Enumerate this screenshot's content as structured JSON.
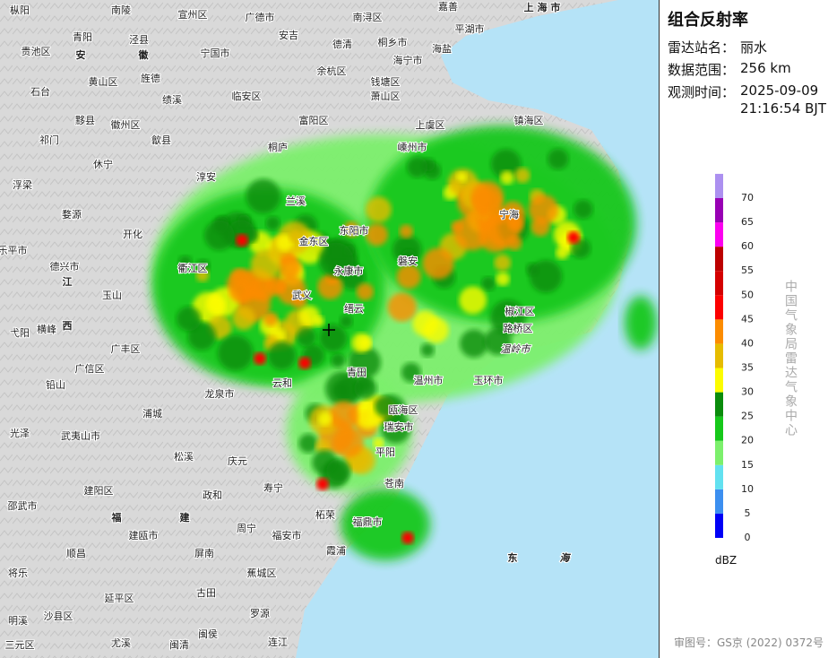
{
  "panel": {
    "title": "组合反射率",
    "station_label": "雷达站名：",
    "station": "丽水",
    "range_label": "数据范围：",
    "range": "256 km",
    "time_label": "观测时间：",
    "date": "2025-09-09",
    "time": "21:16:54 BJT",
    "agency": "中国气象局雷达气象中心",
    "unit": "dBZ",
    "approval": "审图号：GS京 (2022) 0372号"
  },
  "legend": {
    "levels": [
      {
        "value": 0,
        "color": "#0000f6"
      },
      {
        "value": 5,
        "color": "#3c8ff0"
      },
      {
        "value": 10,
        "color": "#62e1f0"
      },
      {
        "value": 15,
        "color": "#7cf06c"
      },
      {
        "value": 20,
        "color": "#16c81a"
      },
      {
        "value": 25,
        "color": "#0a8c0c"
      },
      {
        "value": 30,
        "color": "#fcfc00"
      },
      {
        "value": 35,
        "color": "#e6bc00"
      },
      {
        "value": 40,
        "color": "#fc8c00"
      },
      {
        "value": 45,
        "color": "#fc0000"
      },
      {
        "value": 50,
        "color": "#d40000"
      },
      {
        "value": 55,
        "color": "#bc0000"
      },
      {
        "value": 60,
        "color": "#fc00f0"
      },
      {
        "value": 65,
        "color": "#9800b4"
      },
      {
        "value": 70,
        "color": "#ac90f0"
      }
    ]
  },
  "map": {
    "region": "上 海 市",
    "places": [
      "枞阳",
      "南陵",
      "宣州区",
      "广德市",
      "安吉",
      "南浔区",
      "嘉善",
      "平湖市",
      "青阳",
      "泾县",
      "宁国市",
      "德清",
      "桐乡市",
      "海盐",
      "贵池区",
      "安",
      "徽",
      "余杭区",
      "海宁市",
      "石台",
      "黄山区",
      "旌德",
      "临安区",
      "钱塘区",
      "萧山区",
      "绩溪",
      "黟县",
      "徽州区",
      "歙县",
      "富阳区",
      "上虞区",
      "镇海区",
      "祁门",
      "休宁",
      "淳安",
      "桐庐",
      "嵊州市",
      "浮梁",
      "婺源",
      "兰溪",
      "开化",
      "金东区",
      "东阳市",
      "乐平市",
      "德兴市",
      "衢江区",
      "玉山",
      "武义",
      "江",
      "缙云",
      "永康市",
      "磐安",
      "横峰",
      "西",
      "弋阳",
      "广丰区",
      "广信区",
      "铅山",
      "龙泉市",
      "青田",
      "云和",
      "瓯海区",
      "瑞安市",
      "庆元",
      "平阳",
      "光泽",
      "武夷山市",
      "松溪",
      "浦城",
      "建阳区",
      "政和",
      "寿宁",
      "苍南",
      "邵武市",
      "福",
      "建",
      "建瓯市",
      "周宁",
      "福安市",
      "福鼎市",
      "柘荣",
      "顺昌",
      "屏南",
      "霞浦",
      "将乐",
      "蕉城区",
      "古田",
      "延平区",
      "明溪",
      "沙县区",
      "罗源",
      "闽清",
      "闽侯",
      "连江",
      "三元区",
      "尤溪",
      "东",
      "海",
      "温岭市",
      "玉环市",
      "路桥区",
      "椒江区",
      "宁海",
      "温州市"
    ]
  }
}
